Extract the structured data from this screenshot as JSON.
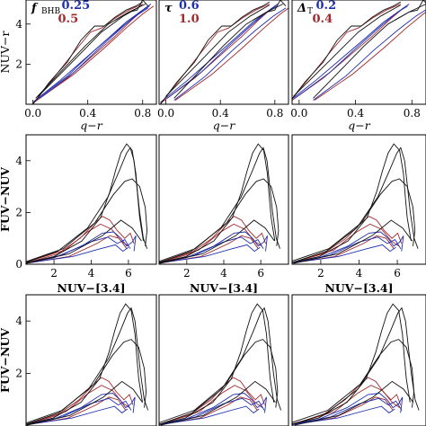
{
  "chart_data": [
    {
      "type": "line",
      "panel": "top-left",
      "xlabel": "q−r",
      "ylabel": "NUV−r",
      "xlim": [
        -0.05,
        0.9
      ],
      "ylim": [
        0,
        5.2
      ],
      "xticks": [
        "0.0",
        "0.4",
        "0.8"
      ],
      "yticks": [
        "2",
        "4"
      ],
      "legend": {
        "param": "f",
        "subscript": "BHB",
        "values": [
          "0.25",
          "0.5"
        ],
        "colors": [
          "#1f2fb0",
          "#a3282c"
        ]
      }
    },
    {
      "type": "line",
      "panel": "top-middle",
      "xlabel": "q−r",
      "ylabel": "",
      "xlim": [
        -0.05,
        0.9
      ],
      "ylim": [
        0,
        5.2
      ],
      "xticks": [
        "0.0",
        "0.4",
        "0.8"
      ],
      "yticks": [],
      "legend": {
        "param": "τ",
        "subscript": "",
        "values": [
          "0.6",
          "1.0"
        ],
        "colors": [
          "#1f2fb0",
          "#a3282c"
        ]
      }
    },
    {
      "type": "line",
      "panel": "top-right",
      "xlabel": "q−r",
      "ylabel": "",
      "xlim": [
        -0.05,
        0.9
      ],
      "ylim": [
        0,
        5.2
      ],
      "xticks": [
        "0.0",
        "0.4",
        "0.8"
      ],
      "yticks": [],
      "legend": {
        "param": "Δ",
        "subscript": "T",
        "values": [
          "0.2",
          "0.4"
        ],
        "colors": [
          "#1f2fb0",
          "#a3282c"
        ]
      }
    },
    {
      "type": "line",
      "panel": "middle-left",
      "xlabel": "NUV−[3.4]",
      "ylabel": "FUV−NUV",
      "xlim": [
        0.5,
        7.5
      ],
      "ylim": [
        0,
        5
      ],
      "xticks": [
        "2",
        "4",
        "6"
      ],
      "yticks": [
        "0",
        "2",
        "4"
      ]
    },
    {
      "type": "line",
      "panel": "middle-middle",
      "xlabel": "NUV−[3.4]",
      "ylabel": "",
      "xlim": [
        0.5,
        7.5
      ],
      "ylim": [
        0,
        5
      ],
      "xticks": [
        "2",
        "4",
        "6"
      ],
      "yticks": []
    },
    {
      "type": "line",
      "panel": "middle-right",
      "xlabel": "NUV−[3.4]",
      "ylabel": "",
      "xlim": [
        0.5,
        7.5
      ],
      "ylim": [
        0,
        5
      ],
      "xticks": [
        "2",
        "4",
        "6"
      ],
      "yticks": []
    },
    {
      "type": "line",
      "panel": "bottom-left",
      "xlabel": "",
      "ylabel": "FUV−NUV",
      "xlim": [
        0.5,
        7.5
      ],
      "ylim": [
        0,
        5
      ],
      "xticks": [],
      "yticks": [
        "2",
        "4"
      ]
    },
    {
      "type": "line",
      "panel": "bottom-middle",
      "xlabel": "",
      "ylabel": "",
      "xlim": [
        0.5,
        7.5
      ],
      "ylim": [
        0,
        5
      ],
      "xticks": [],
      "yticks": []
    },
    {
      "type": "line",
      "panel": "bottom-right",
      "xlabel": "",
      "ylabel": "",
      "xlim": [
        0.5,
        7.5
      ],
      "ylim": [
        0,
        5
      ],
      "xticks": [],
      "yticks": []
    }
  ],
  "tracks": {
    "qr": {
      "black": [
        [
          [
            0.0,
            0.0
          ],
          [
            0.12,
            1.1
          ],
          [
            0.25,
            2.1
          ],
          [
            0.35,
            3.2
          ],
          [
            0.45,
            3.9
          ],
          [
            0.52,
            3.9
          ],
          [
            0.6,
            4.35
          ],
          [
            0.68,
            4.7
          ],
          [
            0.75,
            4.9
          ],
          [
            0.8,
            5.1
          ]
        ],
        [
          [
            0.02,
            0.3
          ],
          [
            0.2,
            1.6
          ],
          [
            0.38,
            2.9
          ],
          [
            0.55,
            4.0
          ],
          [
            0.7,
            4.6
          ],
          [
            0.82,
            5.0
          ]
        ],
        [
          [
            0.04,
            0.4
          ],
          [
            0.3,
            2.2
          ],
          [
            0.5,
            3.6
          ],
          [
            0.66,
            4.4
          ],
          [
            0.8,
            4.95
          ]
        ],
        [
          [
            0.6,
            4.2
          ],
          [
            0.7,
            4.6
          ],
          [
            0.76,
            4.7
          ],
          [
            0.8,
            5.2
          ],
          [
            0.84,
            4.9
          ]
        ]
      ],
      "blue": [
        [
          [
            0.0,
            0.1
          ],
          [
            0.2,
            1.2
          ],
          [
            0.4,
            2.4
          ],
          [
            0.55,
            3.3
          ],
          [
            0.68,
            4.1
          ],
          [
            0.78,
            4.6
          ],
          [
            0.85,
            4.9
          ]
        ],
        [
          [
            0.02,
            0.2
          ],
          [
            0.25,
            1.4
          ],
          [
            0.45,
            2.7
          ],
          [
            0.62,
            3.7
          ],
          [
            0.75,
            4.4
          ],
          [
            0.84,
            4.8
          ]
        ],
        [
          [
            0.05,
            0.3
          ],
          [
            0.3,
            1.6
          ],
          [
            0.5,
            2.9
          ],
          [
            0.66,
            3.9
          ],
          [
            0.78,
            4.6
          ],
          [
            0.86,
            5.0
          ]
        ]
      ],
      "red": [
        [
          [
            0.0,
            0.05
          ],
          [
            0.25,
            1.3
          ],
          [
            0.45,
            2.5
          ],
          [
            0.6,
            3.4
          ],
          [
            0.72,
            4.2
          ],
          [
            0.82,
            4.8
          ]
        ],
        [
          [
            0.03,
            0.2
          ],
          [
            0.3,
            1.5
          ],
          [
            0.52,
            2.8
          ],
          [
            0.68,
            3.8
          ],
          [
            0.8,
            4.5
          ],
          [
            0.88,
            4.9
          ]
        ],
        [
          [
            0.0,
            0.0
          ],
          [
            0.15,
            1.3
          ],
          [
            0.3,
            2.6
          ],
          [
            0.42,
            3.6
          ],
          [
            0.5,
            3.8
          ],
          [
            0.6,
            4.3
          ],
          [
            0.7,
            4.7
          ],
          [
            0.8,
            5.0
          ]
        ]
      ]
    },
    "nuv": {
      "black": [
        [
          [
            0.5,
            0.05
          ],
          [
            2,
            0.3
          ],
          [
            3.5,
            0.9
          ],
          [
            4.5,
            1.8
          ],
          [
            5,
            2.8
          ],
          [
            5.3,
            3.6
          ],
          [
            5.6,
            4.3
          ],
          [
            5.9,
            4.65
          ],
          [
            6.2,
            4.4
          ],
          [
            6.4,
            3.5
          ],
          [
            6.5,
            2.6
          ],
          [
            6.6,
            1.8
          ],
          [
            6.8,
            0.9
          ]
        ],
        [
          [
            0.5,
            0.08
          ],
          [
            2.2,
            0.5
          ],
          [
            3.8,
            1.4
          ],
          [
            4.9,
            2.6
          ],
          [
            5.5,
            3.6
          ],
          [
            5.9,
            4.3
          ],
          [
            6.1,
            4.5
          ],
          [
            6.3,
            4.0
          ],
          [
            6.45,
            3.0
          ],
          [
            6.6,
            2.0
          ],
          [
            6.8,
            1.0
          ],
          [
            7.0,
            0.6
          ]
        ],
        [
          [
            0.5,
            0.1
          ],
          [
            2.5,
            0.6
          ],
          [
            4.2,
            1.6
          ],
          [
            5.2,
            2.7
          ],
          [
            5.8,
            3.2
          ],
          [
            6.2,
            3.3
          ],
          [
            6.6,
            3.0
          ],
          [
            6.9,
            2.2
          ],
          [
            7.0,
            1.3
          ],
          [
            6.9,
            0.7
          ]
        ],
        [
          [
            0.5,
            0.03
          ],
          [
            2.8,
            0.4
          ],
          [
            4.6,
            1.1
          ],
          [
            5.6,
            1.7
          ],
          [
            6.2,
            1.4
          ],
          [
            6.7,
            0.9
          ]
        ]
      ],
      "blue": [
        [
          [
            0.5,
            0.05
          ],
          [
            2,
            0.25
          ],
          [
            3.5,
            0.7
          ],
          [
            4.6,
            1.2
          ],
          [
            5.2,
            1.25
          ],
          [
            5.6,
            1.0
          ],
          [
            5.9,
            0.7
          ],
          [
            6.2,
            0.85
          ],
          [
            6.4,
            1.1
          ],
          [
            6.3,
            0.5
          ]
        ],
        [
          [
            0.5,
            0.06
          ],
          [
            2.4,
            0.35
          ],
          [
            3.9,
            0.85
          ],
          [
            4.9,
            1.05
          ],
          [
            5.4,
            0.8
          ],
          [
            5.8,
            0.95
          ],
          [
            6.1,
            0.6
          ]
        ],
        [
          [
            0.5,
            0.04
          ],
          [
            3,
            0.3
          ],
          [
            4.5,
            0.6
          ],
          [
            5.3,
            0.75
          ],
          [
            5.7,
            0.5
          ],
          [
            6.0,
            0.65
          ]
        ]
      ],
      "red": [
        [
          [
            0.5,
            0.05
          ],
          [
            2.2,
            0.4
          ],
          [
            3.4,
            1.0
          ],
          [
            4.2,
            1.6
          ],
          [
            4.6,
            1.85
          ],
          [
            5.0,
            1.7
          ],
          [
            5.4,
            1.3
          ],
          [
            5.8,
            1.0
          ],
          [
            6.1,
            1.2
          ],
          [
            6.3,
            0.8
          ]
        ],
        [
          [
            0.5,
            0.08
          ],
          [
            2.6,
            0.55
          ],
          [
            3.8,
            1.25
          ],
          [
            4.5,
            1.55
          ],
          [
            5.1,
            1.35
          ],
          [
            5.6,
            0.9
          ],
          [
            6.0,
            0.7
          ]
        ],
        [
          [
            0.5,
            0.03
          ],
          [
            2.8,
            0.3
          ],
          [
            4.3,
            0.8
          ],
          [
            5.0,
            1.1
          ],
          [
            5.5,
            1.0
          ],
          [
            5.9,
            0.6
          ]
        ]
      ]
    }
  }
}
